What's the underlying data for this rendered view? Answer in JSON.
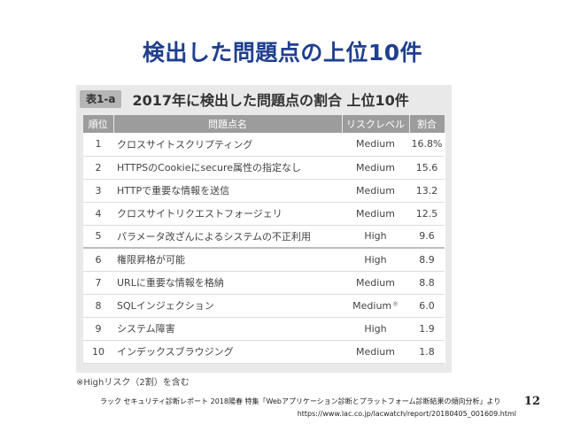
{
  "slide": {
    "title": "検出した問題点の上位10件",
    "page_number": "12"
  },
  "figure": {
    "tag": "表1-a",
    "title": "2017年に検出した問題点の割合  上位10件",
    "columns": [
      "順位",
      "問題点名",
      "リスクレベル",
      "割合"
    ],
    "rows": [
      {
        "rank": "1",
        "issue": "クロスサイトスクリプティング",
        "level": "Medium",
        "share": "16.8%",
        "note": ""
      },
      {
        "rank": "2",
        "issue": "HTTPSのCookieにsecure属性の指定なし",
        "level": "Medium",
        "share": "15.6",
        "note": ""
      },
      {
        "rank": "3",
        "issue": "HTTPで重要な情報を送信",
        "level": "Medium",
        "share": "13.2",
        "note": ""
      },
      {
        "rank": "4",
        "issue": "クロスサイトリクエストフォージェリ",
        "level": "Medium",
        "share": "12.5",
        "note": ""
      },
      {
        "rank": "5",
        "issue": "パラメータ改ざんによるシステムの不正利用",
        "level": "High",
        "share": "9.6",
        "note": ""
      },
      {
        "rank": "6",
        "issue": "権限昇格が可能",
        "level": "High",
        "share": "8.9",
        "note": ""
      },
      {
        "rank": "7",
        "issue": "URLに重要な情報を格納",
        "level": "Medium",
        "share": "8.8",
        "note": ""
      },
      {
        "rank": "8",
        "issue": "SQLインジェクション",
        "level": "Medium",
        "share": "6.0",
        "note": "※"
      },
      {
        "rank": "9",
        "issue": "システム障害",
        "level": "High",
        "share": "1.9",
        "note": ""
      },
      {
        "rank": "10",
        "issue": "インデックスブラウジング",
        "level": "Medium",
        "share": "1.8",
        "note": ""
      }
    ],
    "footnote": "※Highリスク（2割）を含む"
  },
  "source": {
    "line1": "ラック セキュリティ診断レポート 2018陽春 特集「Webアプリケーション診断とプラットフォーム診断結果の傾向分析」より",
    "line2": "https://www.lac.co.jp/lacwatch/report/20180405_001609.html"
  }
}
